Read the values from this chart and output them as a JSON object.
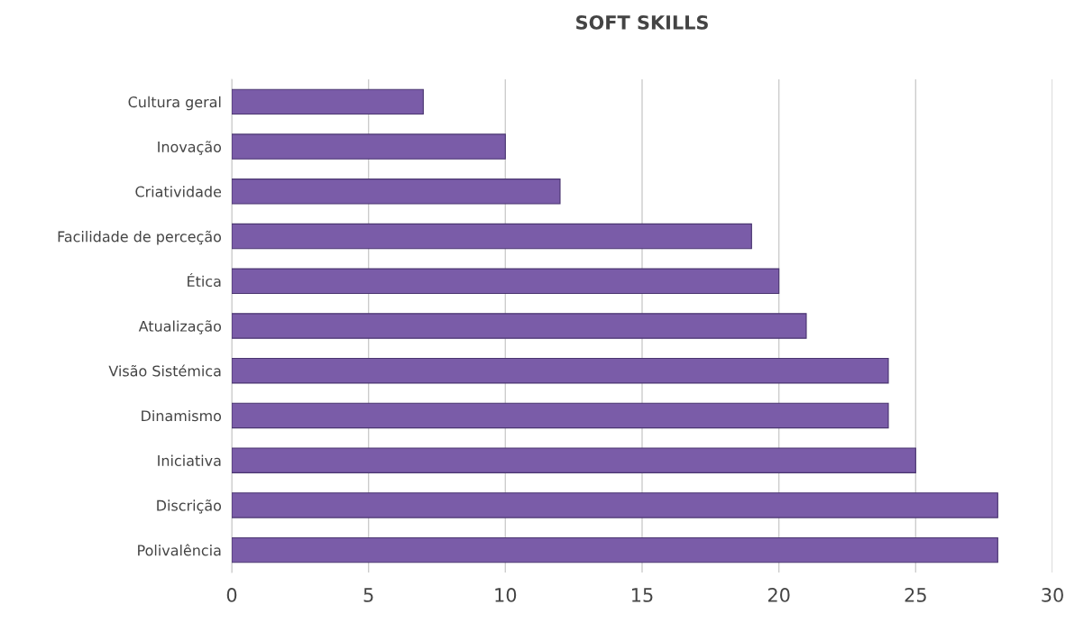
{
  "chart_data": {
    "type": "bar",
    "title": "SOFT SKILLS",
    "orientation": "horizontal",
    "categories": [
      "Cultura geral",
      "Inovação",
      "Criatividade",
      "Facilidade de perceção",
      "Ética",
      "Atualização",
      "Visão Sistémica",
      "Dinamismo",
      "Iniciativa",
      "Discrição",
      "Polivalência"
    ],
    "values": [
      7,
      10,
      12,
      19,
      20,
      21,
      24,
      24,
      25,
      28,
      28
    ],
    "color": "#7a5ca8",
    "xlim": [
      0,
      30
    ],
    "xticks": [
      0,
      5,
      10,
      15,
      20,
      25,
      30
    ],
    "grid": "x"
  }
}
